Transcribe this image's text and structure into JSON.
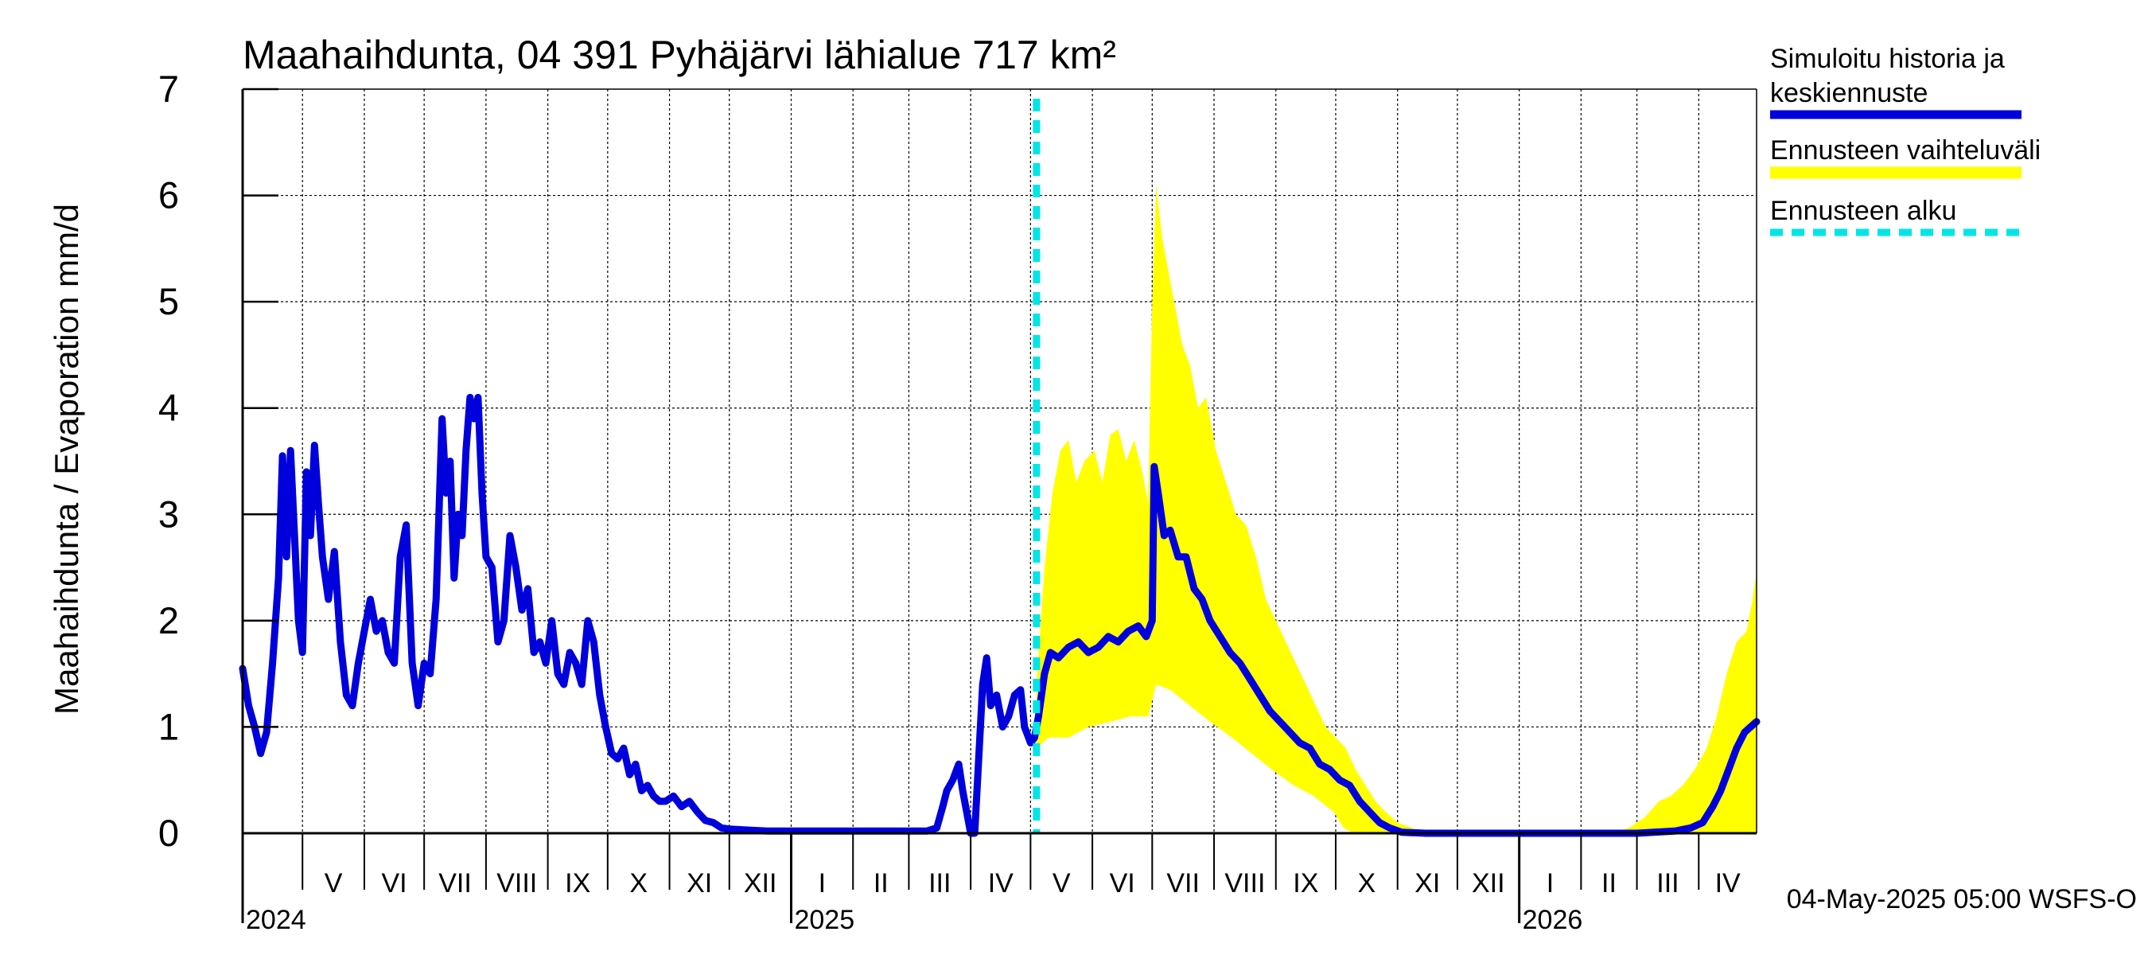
{
  "chart_data": {
    "type": "line",
    "title": "Maahaihdunta, 04 391 Pyhäjärvi lähialue 717 km²",
    "ylabel": "Maahaihdunta / Evaporation   mm/d",
    "ylim": [
      0,
      7
    ],
    "yticks": [
      "0",
      "1",
      "2",
      "3",
      "4",
      "5",
      "6",
      "7"
    ],
    "xlim": [
      "2024-04-01",
      "2026-04-30"
    ],
    "months": [
      {
        "label": "V",
        "start": "2024-05-01"
      },
      {
        "label": "VI",
        "start": "2024-06-01"
      },
      {
        "label": "VII",
        "start": "2024-07-01"
      },
      {
        "label": "VIII",
        "start": "2024-08-01"
      },
      {
        "label": "IX",
        "start": "2024-09-01"
      },
      {
        "label": "X",
        "start": "2024-10-01"
      },
      {
        "label": "XI",
        "start": "2024-11-01"
      },
      {
        "label": "XII",
        "start": "2024-12-01"
      },
      {
        "label": "I",
        "start": "2025-01-01"
      },
      {
        "label": "II",
        "start": "2025-02-01"
      },
      {
        "label": "III",
        "start": "2025-03-01"
      },
      {
        "label": "IV",
        "start": "2025-04-01"
      },
      {
        "label": "V",
        "start": "2025-05-01"
      },
      {
        "label": "VI",
        "start": "2025-06-01"
      },
      {
        "label": "VII",
        "start": "2025-07-01"
      },
      {
        "label": "VIII",
        "start": "2025-08-01"
      },
      {
        "label": "IX",
        "start": "2025-09-01"
      },
      {
        "label": "X",
        "start": "2025-10-01"
      },
      {
        "label": "XI",
        "start": "2025-11-01"
      },
      {
        "label": "XII",
        "start": "2025-12-01"
      },
      {
        "label": "I",
        "start": "2026-01-01"
      },
      {
        "label": "II",
        "start": "2026-02-01"
      },
      {
        "label": "III",
        "start": "2026-03-01"
      },
      {
        "label": "IV",
        "start": "2026-04-01"
      }
    ],
    "years": [
      {
        "label": "2024",
        "at": "2024-04-01"
      },
      {
        "label": "2025",
        "at": "2025-01-01"
      },
      {
        "label": "2026",
        "at": "2026-01-01"
      }
    ],
    "forecast_start": "2025-05-04",
    "series": [
      {
        "name": "Simuloitu historia ja keskiennuste",
        "color": "#0000dd",
        "points": [
          [
            "2024-04-01",
            1.55
          ],
          [
            "2024-04-04",
            1.2
          ],
          [
            "2024-04-07",
            1.0
          ],
          [
            "2024-04-10",
            0.75
          ],
          [
            "2024-04-13",
            0.95
          ],
          [
            "2024-04-16",
            1.6
          ],
          [
            "2024-04-19",
            2.4
          ],
          [
            "2024-04-21",
            3.55
          ],
          [
            "2024-04-23",
            2.6
          ],
          [
            "2024-04-25",
            3.6
          ],
          [
            "2024-04-27",
            2.8
          ],
          [
            "2024-04-29",
            2.0
          ],
          [
            "2024-05-01",
            1.7
          ],
          [
            "2024-05-03",
            3.4
          ],
          [
            "2024-05-05",
            2.8
          ],
          [
            "2024-05-07",
            3.65
          ],
          [
            "2024-05-09",
            3.1
          ],
          [
            "2024-05-11",
            2.6
          ],
          [
            "2024-05-14",
            2.2
          ],
          [
            "2024-05-17",
            2.65
          ],
          [
            "2024-05-20",
            1.8
          ],
          [
            "2024-05-23",
            1.3
          ],
          [
            "2024-05-26",
            1.2
          ],
          [
            "2024-05-29",
            1.6
          ],
          [
            "2024-06-01",
            1.9
          ],
          [
            "2024-06-04",
            2.2
          ],
          [
            "2024-06-07",
            1.9
          ],
          [
            "2024-06-10",
            2.0
          ],
          [
            "2024-06-13",
            1.7
          ],
          [
            "2024-06-16",
            1.6
          ],
          [
            "2024-06-19",
            2.6
          ],
          [
            "2024-06-22",
            2.9
          ],
          [
            "2024-06-25",
            1.6
          ],
          [
            "2024-06-28",
            1.2
          ],
          [
            "2024-07-01",
            1.6
          ],
          [
            "2024-07-04",
            1.5
          ],
          [
            "2024-07-07",
            2.2
          ],
          [
            "2024-07-10",
            3.9
          ],
          [
            "2024-07-12",
            3.2
          ],
          [
            "2024-07-14",
            3.5
          ],
          [
            "2024-07-16",
            2.4
          ],
          [
            "2024-07-18",
            3.0
          ],
          [
            "2024-07-20",
            2.8
          ],
          [
            "2024-07-22",
            3.6
          ],
          [
            "2024-07-24",
            4.1
          ],
          [
            "2024-07-26",
            3.9
          ],
          [
            "2024-07-28",
            4.1
          ],
          [
            "2024-07-30",
            3.2
          ],
          [
            "2024-08-01",
            2.6
          ],
          [
            "2024-08-04",
            2.5
          ],
          [
            "2024-08-07",
            1.8
          ],
          [
            "2024-08-10",
            2.0
          ],
          [
            "2024-08-13",
            2.8
          ],
          [
            "2024-08-16",
            2.5
          ],
          [
            "2024-08-19",
            2.1
          ],
          [
            "2024-08-22",
            2.3
          ],
          [
            "2024-08-25",
            1.7
          ],
          [
            "2024-08-28",
            1.8
          ],
          [
            "2024-08-31",
            1.6
          ],
          [
            "2024-09-03",
            2.0
          ],
          [
            "2024-09-06",
            1.5
          ],
          [
            "2024-09-09",
            1.4
          ],
          [
            "2024-09-12",
            1.7
          ],
          [
            "2024-09-15",
            1.6
          ],
          [
            "2024-09-18",
            1.4
          ],
          [
            "2024-09-21",
            2.0
          ],
          [
            "2024-09-24",
            1.8
          ],
          [
            "2024-09-27",
            1.3
          ],
          [
            "2024-09-30",
            1.0
          ],
          [
            "2024-10-03",
            0.75
          ],
          [
            "2024-10-06",
            0.7
          ],
          [
            "2024-10-09",
            0.8
          ],
          [
            "2024-10-12",
            0.55
          ],
          [
            "2024-10-15",
            0.65
          ],
          [
            "2024-10-18",
            0.4
          ],
          [
            "2024-10-21",
            0.45
          ],
          [
            "2024-10-24",
            0.35
          ],
          [
            "2024-10-27",
            0.3
          ],
          [
            "2024-10-30",
            0.3
          ],
          [
            "2024-11-03",
            0.35
          ],
          [
            "2024-11-07",
            0.25
          ],
          [
            "2024-11-11",
            0.3
          ],
          [
            "2024-11-15",
            0.2
          ],
          [
            "2024-11-19",
            0.12
          ],
          [
            "2024-11-23",
            0.1
          ],
          [
            "2024-11-27",
            0.05
          ],
          [
            "2024-12-01",
            0.04
          ],
          [
            "2024-12-10",
            0.03
          ],
          [
            "2024-12-20",
            0.02
          ],
          [
            "2025-01-01",
            0.02
          ],
          [
            "2025-01-15",
            0.02
          ],
          [
            "2025-02-01",
            0.02
          ],
          [
            "2025-02-15",
            0.02
          ],
          [
            "2025-03-01",
            0.02
          ],
          [
            "2025-03-10",
            0.02
          ],
          [
            "2025-03-15",
            0.05
          ],
          [
            "2025-03-18",
            0.25
          ],
          [
            "2025-03-20",
            0.4
          ],
          [
            "2025-03-23",
            0.5
          ],
          [
            "2025-03-26",
            0.65
          ],
          [
            "2025-03-28",
            0.4
          ],
          [
            "2025-03-30",
            0.2
          ],
          [
            "2025-04-01",
            0.0
          ],
          [
            "2025-04-03",
            0.0
          ],
          [
            "2025-04-05",
            0.7
          ],
          [
            "2025-04-07",
            1.4
          ],
          [
            "2025-04-09",
            1.65
          ],
          [
            "2025-04-11",
            1.2
          ],
          [
            "2025-04-14",
            1.3
          ],
          [
            "2025-04-17",
            1.0
          ],
          [
            "2025-04-20",
            1.1
          ],
          [
            "2025-04-23",
            1.3
          ],
          [
            "2025-04-26",
            1.35
          ],
          [
            "2025-04-28",
            1.0
          ],
          [
            "2025-05-01",
            0.85
          ],
          [
            "2025-05-03",
            0.9
          ],
          [
            "2025-05-05",
            1.1
          ],
          [
            "2025-05-08",
            1.5
          ],
          [
            "2025-05-11",
            1.7
          ],
          [
            "2025-05-15",
            1.65
          ],
          [
            "2025-05-20",
            1.75
          ],
          [
            "2025-05-25",
            1.8
          ],
          [
            "2025-05-30",
            1.7
          ],
          [
            "2025-06-04",
            1.75
          ],
          [
            "2025-06-09",
            1.85
          ],
          [
            "2025-06-14",
            1.8
          ],
          [
            "2025-06-19",
            1.9
          ],
          [
            "2025-06-24",
            1.95
          ],
          [
            "2025-06-28",
            1.85
          ],
          [
            "2025-07-01",
            2.0
          ],
          [
            "2025-07-02",
            3.45
          ],
          [
            "2025-07-04",
            3.2
          ],
          [
            "2025-07-07",
            2.8
          ],
          [
            "2025-07-10",
            2.85
          ],
          [
            "2025-07-14",
            2.6
          ],
          [
            "2025-07-18",
            2.6
          ],
          [
            "2025-07-22",
            2.3
          ],
          [
            "2025-07-26",
            2.2
          ],
          [
            "2025-07-30",
            2.0
          ],
          [
            "2025-08-04",
            1.85
          ],
          [
            "2025-08-09",
            1.7
          ],
          [
            "2025-08-14",
            1.6
          ],
          [
            "2025-08-19",
            1.45
          ],
          [
            "2025-08-24",
            1.3
          ],
          [
            "2025-08-29",
            1.15
          ],
          [
            "2025-09-03",
            1.05
          ],
          [
            "2025-09-08",
            0.95
          ],
          [
            "2025-09-13",
            0.85
          ],
          [
            "2025-09-18",
            0.8
          ],
          [
            "2025-09-23",
            0.65
          ],
          [
            "2025-09-28",
            0.6
          ],
          [
            "2025-10-03",
            0.5
          ],
          [
            "2025-10-08",
            0.45
          ],
          [
            "2025-10-13",
            0.3
          ],
          [
            "2025-10-18",
            0.2
          ],
          [
            "2025-10-23",
            0.1
          ],
          [
            "2025-10-28",
            0.05
          ],
          [
            "2025-11-03",
            0.01
          ],
          [
            "2025-11-15",
            0.0
          ],
          [
            "2025-12-01",
            0.0
          ],
          [
            "2026-01-01",
            0.0
          ],
          [
            "2026-02-01",
            0.0
          ],
          [
            "2026-03-01",
            0.0
          ],
          [
            "2026-03-20",
            0.02
          ],
          [
            "2026-03-28",
            0.05
          ],
          [
            "2026-04-03",
            0.1
          ],
          [
            "2026-04-08",
            0.25
          ],
          [
            "2026-04-12",
            0.4
          ],
          [
            "2026-04-16",
            0.6
          ],
          [
            "2026-04-20",
            0.8
          ],
          [
            "2026-04-24",
            0.95
          ],
          [
            "2026-04-27",
            1.0
          ],
          [
            "2026-04-30",
            1.05
          ]
        ]
      }
    ],
    "band": {
      "name": "Ennusteen vaihteluväli",
      "color": "#ffff00",
      "upper": [
        [
          "2025-05-04",
          1.4
        ],
        [
          "2025-05-08",
          2.5
        ],
        [
          "2025-05-12",
          3.2
        ],
        [
          "2025-05-16",
          3.6
        ],
        [
          "2025-05-20",
          3.7
        ],
        [
          "2025-05-24",
          3.3
        ],
        [
          "2025-05-28",
          3.5
        ],
        [
          "2025-06-02",
          3.6
        ],
        [
          "2025-06-06",
          3.3
        ],
        [
          "2025-06-10",
          3.75
        ],
        [
          "2025-06-14",
          3.8
        ],
        [
          "2025-06-18",
          3.5
        ],
        [
          "2025-06-22",
          3.7
        ],
        [
          "2025-06-26",
          3.4
        ],
        [
          "2025-06-29",
          3.1
        ],
        [
          "2025-07-01",
          5.0
        ],
        [
          "2025-07-03",
          6.1
        ],
        [
          "2025-07-06",
          5.6
        ],
        [
          "2025-07-09",
          5.3
        ],
        [
          "2025-07-12",
          5.0
        ],
        [
          "2025-07-16",
          4.6
        ],
        [
          "2025-07-20",
          4.4
        ],
        [
          "2025-07-24",
          4.0
        ],
        [
          "2025-07-28",
          4.1
        ],
        [
          "2025-08-02",
          3.6
        ],
        [
          "2025-08-07",
          3.3
        ],
        [
          "2025-08-12",
          3.0
        ],
        [
          "2025-08-17",
          2.9
        ],
        [
          "2025-08-22",
          2.6
        ],
        [
          "2025-08-27",
          2.2
        ],
        [
          "2025-09-01",
          2.0
        ],
        [
          "2025-09-06",
          1.8
        ],
        [
          "2025-09-11",
          1.6
        ],
        [
          "2025-09-16",
          1.4
        ],
        [
          "2025-09-21",
          1.2
        ],
        [
          "2025-09-26",
          1.0
        ],
        [
          "2025-10-01",
          0.9
        ],
        [
          "2025-10-06",
          0.8
        ],
        [
          "2025-10-11",
          0.6
        ],
        [
          "2025-10-16",
          0.45
        ],
        [
          "2025-10-21",
          0.3
        ],
        [
          "2025-10-26",
          0.2
        ],
        [
          "2025-11-01",
          0.1
        ],
        [
          "2025-11-10",
          0.04
        ],
        [
          "2025-11-20",
          0.0
        ],
        [
          "2026-02-15",
          0.0
        ],
        [
          "2026-02-25",
          0.05
        ],
        [
          "2026-03-05",
          0.15
        ],
        [
          "2026-03-12",
          0.3
        ],
        [
          "2026-03-18",
          0.35
        ],
        [
          "2026-03-24",
          0.45
        ],
        [
          "2026-03-30",
          0.6
        ],
        [
          "2026-04-05",
          0.8
        ],
        [
          "2026-04-10",
          1.1
        ],
        [
          "2026-04-15",
          1.5
        ],
        [
          "2026-04-20",
          1.8
        ],
        [
          "2026-04-25",
          1.9
        ],
        [
          "2026-04-28",
          2.2
        ],
        [
          "2026-04-30",
          2.45
        ]
      ],
      "lower": [
        [
          "2025-05-04",
          0.8
        ],
        [
          "2025-05-10",
          0.9
        ],
        [
          "2025-05-20",
          0.9
        ],
        [
          "2025-05-30",
          1.0
        ],
        [
          "2025-06-10",
          1.05
        ],
        [
          "2025-06-20",
          1.1
        ],
        [
          "2025-06-29",
          1.1
        ],
        [
          "2025-07-03",
          1.4
        ],
        [
          "2025-07-10",
          1.35
        ],
        [
          "2025-07-20",
          1.2
        ],
        [
          "2025-07-30",
          1.05
        ],
        [
          "2025-08-10",
          0.9
        ],
        [
          "2025-08-20",
          0.75
        ],
        [
          "2025-08-30",
          0.6
        ],
        [
          "2025-09-10",
          0.45
        ],
        [
          "2025-09-20",
          0.35
        ],
        [
          "2025-09-30",
          0.2
        ],
        [
          "2025-10-05",
          0.05
        ],
        [
          "2025-10-10",
          0.0
        ],
        [
          "2026-04-30",
          0.0
        ]
      ]
    }
  },
  "legend": {
    "history_label_line1": "Simuloitu historia ja",
    "history_label_line2": "keskiennuste",
    "range_label": "Ennusteen vaihteluväli",
    "forecast_start_label": "Ennusteen alku",
    "colors": {
      "history": "#0000dd",
      "range": "#ffff00",
      "forecast_start": "#00e5e5"
    }
  },
  "footer": {
    "timestamp": "04-May-2025 05:00 WSFS-O"
  }
}
